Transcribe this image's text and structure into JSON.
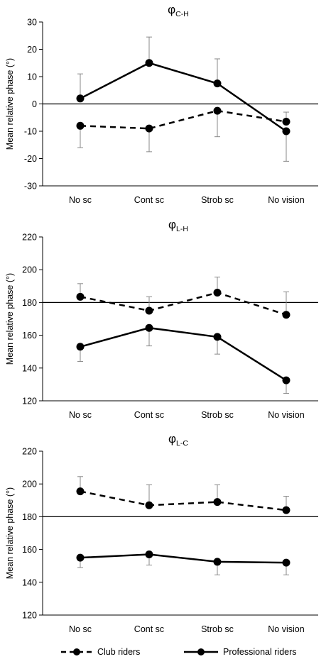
{
  "chart_data": [
    {
      "type": "line",
      "title": "φC-H",
      "title_symbol": "φ",
      "title_sub": "C-H",
      "ylabel": "Mean relative phase (°)",
      "ylim": [
        -30,
        30
      ],
      "yticks": [
        -30,
        -20,
        -10,
        0,
        10,
        20,
        30
      ],
      "reference_line": 0,
      "categories": [
        "No sc",
        "Cont sc",
        "Strob sc",
        "No vision"
      ],
      "series": [
        {
          "name": "Club riders",
          "style": "dashed",
          "values": [
            -8,
            -9,
            -2.5,
            -6.5
          ],
          "err_plus": [
            0,
            0,
            0,
            3.5
          ],
          "err_minus": [
            8,
            8.5,
            9.5,
            0
          ]
        },
        {
          "name": "Professional riders",
          "style": "solid",
          "values": [
            2,
            15,
            7.5,
            -10
          ],
          "err_plus": [
            9,
            9.5,
            9,
            0
          ],
          "err_minus": [
            0,
            0,
            0,
            11
          ]
        }
      ]
    },
    {
      "type": "line",
      "title": "φL-H",
      "title_symbol": "φ",
      "title_sub": "L-H",
      "ylabel": "Mean relative phase (°)",
      "ylim": [
        120,
        220
      ],
      "yticks": [
        120,
        140,
        160,
        180,
        200,
        220
      ],
      "reference_line": 180,
      "categories": [
        "No sc",
        "Cont sc",
        "Strob sc",
        "No vision"
      ],
      "series": [
        {
          "name": "Club riders",
          "style": "dashed",
          "values": [
            183.5,
            175,
            186,
            172.5
          ],
          "err_plus": [
            8,
            8.5,
            9.5,
            14
          ],
          "err_minus": [
            0,
            0,
            0,
            0
          ]
        },
        {
          "name": "Professional riders",
          "style": "solid",
          "values": [
            153,
            164.5,
            159,
            132.5
          ],
          "err_plus": [
            0,
            0,
            0,
            0
          ],
          "err_minus": [
            9,
            11,
            10.5,
            8
          ]
        }
      ]
    },
    {
      "type": "line",
      "title": "φL-C",
      "title_symbol": "φ",
      "title_sub": "L-C",
      "ylabel": "Mean relative phase (°)",
      "ylim": [
        120,
        220
      ],
      "yticks": [
        120,
        140,
        160,
        180,
        200,
        220
      ],
      "reference_line": 180,
      "categories": [
        "No sc",
        "Cont sc",
        "Strob sc",
        "No vision"
      ],
      "series": [
        {
          "name": "Club riders",
          "style": "dashed",
          "values": [
            195.5,
            187,
            189,
            184
          ],
          "err_plus": [
            9,
            12.5,
            10.5,
            8.5
          ],
          "err_minus": [
            0,
            0,
            0,
            0
          ]
        },
        {
          "name": "Professional riders",
          "style": "solid",
          "values": [
            155,
            157,
            152.5,
            152
          ],
          "err_plus": [
            0,
            0,
            0,
            0
          ],
          "err_minus": [
            6,
            6.5,
            8,
            7.5
          ]
        }
      ]
    }
  ],
  "legend": {
    "club_label": "Club riders",
    "pro_label": "Professional riders"
  }
}
